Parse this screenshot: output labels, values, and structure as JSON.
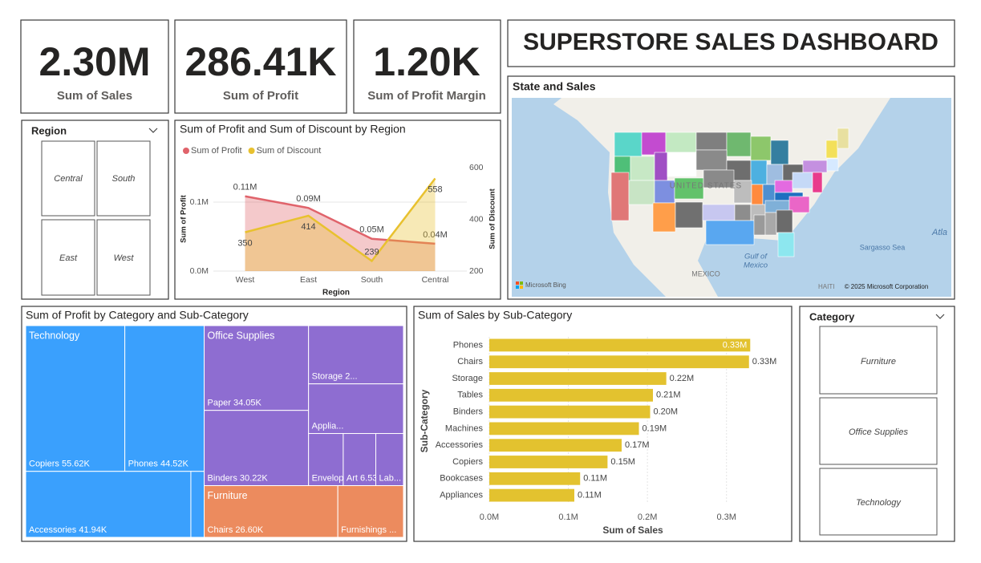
{
  "title": "SUPERSTORE SALES DASHBOARD",
  "cards": [
    {
      "value": "2.30M",
      "label": "Sum of Sales"
    },
    {
      "value": "286.41K",
      "label": "Sum of Profit"
    },
    {
      "value": "1.20K",
      "label": "Sum of Profit Margin"
    }
  ],
  "region_slicer": {
    "title": "Region",
    "items": [
      "Central",
      "South",
      "East",
      "West"
    ]
  },
  "category_slicer": {
    "title": "Category",
    "items": [
      "Furniture",
      "Office Supplies",
      "Technology"
    ]
  },
  "map": {
    "title": "State and Sales",
    "labels": [
      "UNITED STATES",
      "MEXICO",
      "Gulf of",
      "Mexico",
      "Sargasso Sea",
      "Atla",
      "HAITI"
    ],
    "attribution": "© 2025 Microsoft Corporation",
    "provider": "Microsoft Bing"
  },
  "chart_data": [
    {
      "type": "line",
      "title": "Sum of Profit and Sum of Discount by Region",
      "categories": [
        "West",
        "East",
        "South",
        "Central"
      ],
      "xlabel": "Region",
      "ylabel": "Sum of Profit",
      "y2label": "Sum of Discount",
      "ylim": [
        0,
        150000
      ],
      "yticks": [
        {
          "value": 0,
          "label": "0.0M"
        },
        {
          "value": 100000,
          "label": "0.1M"
        }
      ],
      "y2lim": [
        200,
        600
      ],
      "y2ticks": [
        200,
        400,
        600
      ],
      "grid": true,
      "area": true,
      "legend": "top-left",
      "series": [
        {
          "name": "Sum of Profit",
          "color": "#e0636b",
          "values": [
            108418,
            91523,
            46749,
            39706
          ],
          "value_labels": [
            "0.11M",
            "0.09M",
            "0.05M",
            "0.04M"
          ]
        },
        {
          "name": "Sum of Discount",
          "color": "#e8c12f",
          "axis": "y2",
          "values": [
            350,
            414,
            239,
            558
          ]
        }
      ]
    },
    {
      "type": "treemap",
      "title": "Sum of Profit by Category and Sub-Category",
      "groups": [
        {
          "name": "Technology",
          "color": "#3aa0fd",
          "children": [
            {
              "label": "Copiers 55.62K",
              "value": 55620
            },
            {
              "label": "Phones 44.52K",
              "value": 44520
            },
            {
              "label": "Accessories 41.94K",
              "value": 41940
            },
            {
              "label": null,
              "value": 3380
            }
          ]
        },
        {
          "name": "Office Supplies",
          "color": "#8e6dd1",
          "children": [
            {
              "label": "Paper 34.05K",
              "value": 34050
            },
            {
              "label": "Binders 30.22K",
              "value": 30220
            },
            {
              "label": "Storage 2...",
              "value": 21280
            },
            {
              "label": "Applia...",
              "value": 18140
            },
            {
              "label": "Envelopes 6....",
              "value": 6960
            },
            {
              "label": "Art 6.53K",
              "value": 6530
            },
            {
              "label": "Lab...",
              "value": 5550
            }
          ]
        },
        {
          "name": "Furniture",
          "color": "#ec8b5e",
          "children": [
            {
              "label": "Chairs 26.60K",
              "value": 26600
            },
            {
              "label": "Furnishings ...",
              "value": 13060
            }
          ]
        }
      ]
    },
    {
      "type": "hbar",
      "title": "Sum of Sales by Sub-Category",
      "xlabel": "Sum of Sales",
      "ylabel": "Sub-Category",
      "color": "#e3c22f",
      "categories": [
        "Phones",
        "Chairs",
        "Storage",
        "Tables",
        "Binders",
        "Machines",
        "Accessories",
        "Copiers",
        "Bookcases",
        "Appliances"
      ],
      "values": [
        330007,
        328449,
        223844,
        206966,
        203413,
        189239,
        167380,
        149528,
        114880,
        107532
      ],
      "value_labels": [
        "0.33M",
        "0.33M",
        "0.22M",
        "0.21M",
        "0.20M",
        "0.19M",
        "0.17M",
        "0.15M",
        "0.11M",
        "0.11M"
      ],
      "xlim": [
        0,
        350000
      ],
      "xticks": [
        {
          "value": 0,
          "label": "0.0M"
        },
        {
          "value": 100000,
          "label": "0.1M"
        },
        {
          "value": 200000,
          "label": "0.2M"
        },
        {
          "value": 300000,
          "label": "0.3M"
        }
      ],
      "grid": true
    }
  ]
}
